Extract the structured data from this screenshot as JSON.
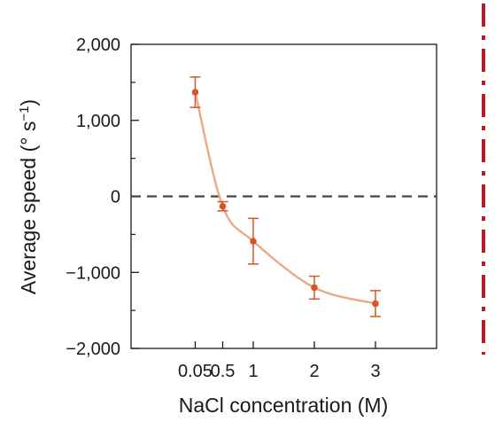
{
  "chart_data": {
    "type": "line",
    "title": "",
    "xlabel": "NaCl concentration (M)",
    "ylabel_main": "Average speed (° s",
    "ylabel_sup": "−1",
    "ylabel_close": ")",
    "x_tick_labels": [
      "0.05",
      "0.5",
      "1",
      "2",
      "3"
    ],
    "x_positions": [
      0.05,
      0.5,
      1,
      2,
      3
    ],
    "xlim": [
      -1.0,
      4.0
    ],
    "y_ticks": [
      2000,
      1000,
      0,
      -1000,
      -2000
    ],
    "y_tick_labels": [
      "2,000",
      "1,000",
      "0",
      "−1,000",
      "−2,000"
    ],
    "ylim": [
      -2000,
      2000
    ],
    "y_minor_step": 500,
    "reference_line": {
      "y": 0,
      "style": "dashed"
    },
    "series": [
      {
        "x": [
          0.05,
          0.5,
          1,
          2,
          3
        ],
        "y": [
          1370,
          -130,
          -590,
          -1200,
          -1410
        ],
        "error": [
          200,
          60,
          300,
          150,
          170
        ]
      }
    ],
    "colors": {
      "line": "#eaa888",
      "marker": "#d4562a",
      "axis": "#1a1a1a",
      "reference": "#444444",
      "side_border": "#b01e2e"
    },
    "grid": false,
    "legend": "none"
  }
}
